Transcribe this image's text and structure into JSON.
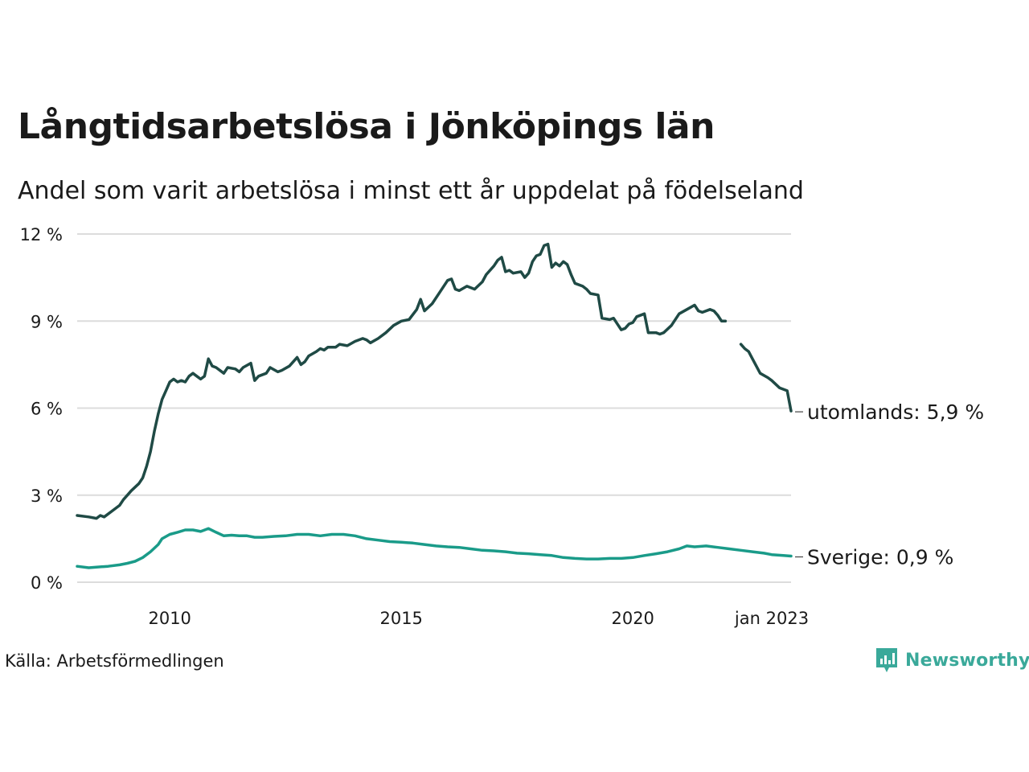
{
  "title": "Långtidsarbetslösa i Jönköpings län",
  "subtitle": "Andel som varit arbetslösa i minst ett år uppdelat på födelseland",
  "source": "Källa: Arbetsförmedlingen",
  "brand": {
    "name": "Newsworthy",
    "icon": "newsworthy-logo-icon",
    "color": "#3aa99a"
  },
  "chart_data": {
    "type": "line",
    "title": "Långtidsarbetslösa i Jönköpings län",
    "subtitle": "Andel som varit arbetslösa i minst ett år uppdelat på födelseland",
    "x_range": [
      "2008-01",
      "2023-01"
    ],
    "ylim": [
      0,
      12
    ],
    "y_ticks": [
      0,
      3,
      6,
      9,
      12
    ],
    "y_tick_labels": [
      "0 %",
      "3 %",
      "6 %",
      "9 %",
      "12 %"
    ],
    "x_ticks": [
      "2010-01",
      "2015-01",
      "2020-01",
      "2023-01"
    ],
    "x_tick_labels": [
      "2010",
      "2015",
      "2020",
      "jan 2023"
    ],
    "grid": "horizontal",
    "legend": "direct labels at line ends",
    "series": [
      {
        "name": "utomlands",
        "end_label": "utomlands: 5,9 %",
        "color": "#1f4a45",
        "points": [
          [
            "2008-01",
            2.3
          ],
          [
            "2008-04",
            2.25
          ],
          [
            "2008-06",
            2.2
          ],
          [
            "2008-07",
            2.3
          ],
          [
            "2008-08",
            2.25
          ],
          [
            "2008-10",
            2.45
          ],
          [
            "2008-12",
            2.65
          ],
          [
            "2009-01",
            2.85
          ],
          [
            "2009-02",
            3.0
          ],
          [
            "2009-03",
            3.15
          ],
          [
            "2009-05",
            3.4
          ],
          [
            "2009-06",
            3.6
          ],
          [
            "2009-07",
            4.0
          ],
          [
            "2009-08",
            4.5
          ],
          [
            "2009-09",
            5.2
          ],
          [
            "2009-10",
            5.8
          ],
          [
            "2009-11",
            6.3
          ],
          [
            "2009-12",
            6.6
          ],
          [
            "2010-01",
            6.9
          ],
          [
            "2010-02",
            7.0
          ],
          [
            "2010-03",
            6.9
          ],
          [
            "2010-04",
            6.95
          ],
          [
            "2010-05",
            6.9
          ],
          [
            "2010-06",
            7.1
          ],
          [
            "2010-07",
            7.2
          ],
          [
            "2010-08",
            7.1
          ],
          [
            "2010-09",
            7.0
          ],
          [
            "2010-10",
            7.1
          ],
          [
            "2010-11",
            7.7
          ],
          [
            "2010-12",
            7.45
          ],
          [
            "2011-01",
            7.4
          ],
          [
            "2011-03",
            7.2
          ],
          [
            "2011-04",
            7.4
          ],
          [
            "2011-06",
            7.35
          ],
          [
            "2011-07",
            7.25
          ],
          [
            "2011-08",
            7.4
          ],
          [
            "2011-10",
            7.55
          ],
          [
            "2011-11",
            6.95
          ],
          [
            "2011-12",
            7.1
          ],
          [
            "2012-02",
            7.2
          ],
          [
            "2012-03",
            7.4
          ],
          [
            "2012-05",
            7.25
          ],
          [
            "2012-06",
            7.3
          ],
          [
            "2012-08",
            7.45
          ],
          [
            "2012-09",
            7.6
          ],
          [
            "2012-10",
            7.75
          ],
          [
            "2012-11",
            7.5
          ],
          [
            "2012-12",
            7.6
          ],
          [
            "2013-01",
            7.8
          ],
          [
            "2013-03",
            7.95
          ],
          [
            "2013-04",
            8.05
          ],
          [
            "2013-05",
            8.0
          ],
          [
            "2013-06",
            8.1
          ],
          [
            "2013-08",
            8.1
          ],
          [
            "2013-09",
            8.2
          ],
          [
            "2013-11",
            8.15
          ],
          [
            "2014-01",
            8.3
          ],
          [
            "2014-03",
            8.4
          ],
          [
            "2014-04",
            8.35
          ],
          [
            "2014-05",
            8.25
          ],
          [
            "2014-07",
            8.4
          ],
          [
            "2014-09",
            8.6
          ],
          [
            "2014-11",
            8.85
          ],
          [
            "2015-01",
            9.0
          ],
          [
            "2015-03",
            9.05
          ],
          [
            "2015-05",
            9.4
          ],
          [
            "2015-06",
            9.75
          ],
          [
            "2015-07",
            9.35
          ],
          [
            "2015-09",
            9.6
          ],
          [
            "2015-11",
            10.0
          ],
          [
            "2016-01",
            10.4
          ],
          [
            "2016-02",
            10.45
          ],
          [
            "2016-03",
            10.1
          ],
          [
            "2016-04",
            10.05
          ],
          [
            "2016-06",
            10.2
          ],
          [
            "2016-08",
            10.1
          ],
          [
            "2016-10",
            10.35
          ],
          [
            "2016-11",
            10.6
          ],
          [
            "2017-01",
            10.9
          ],
          [
            "2017-02",
            11.1
          ],
          [
            "2017-03",
            11.2
          ],
          [
            "2017-04",
            10.7
          ],
          [
            "2017-05",
            10.75
          ],
          [
            "2017-06",
            10.65
          ],
          [
            "2017-08",
            10.7
          ],
          [
            "2017-09",
            10.5
          ],
          [
            "2017-10",
            10.65
          ],
          [
            "2017-11",
            11.05
          ],
          [
            "2017-12",
            11.25
          ],
          [
            "2018-01",
            11.3
          ],
          [
            "2018-02",
            11.6
          ],
          [
            "2018-03",
            11.65
          ],
          [
            "2018-04",
            10.85
          ],
          [
            "2018-05",
            11.0
          ],
          [
            "2018-06",
            10.9
          ],
          [
            "2018-07",
            11.05
          ],
          [
            "2018-08",
            10.95
          ],
          [
            "2018-09",
            10.6
          ],
          [
            "2018-10",
            10.3
          ],
          [
            "2018-12",
            10.2
          ],
          [
            "2019-01",
            10.1
          ],
          [
            "2019-02",
            9.95
          ],
          [
            "2019-04",
            9.9
          ],
          [
            "2019-05",
            9.1
          ],
          [
            "2019-07",
            9.05
          ],
          [
            "2019-08",
            9.1
          ],
          [
            "2019-09",
            8.9
          ],
          [
            "2019-10",
            8.7
          ],
          [
            "2019-11",
            8.75
          ],
          [
            "2019-12",
            8.9
          ],
          [
            "2020-01",
            8.95
          ],
          [
            "2020-02",
            9.15
          ],
          [
            "2020-04",
            9.25
          ],
          [
            "2020-05",
            8.6
          ],
          [
            "2020-07",
            8.6
          ],
          [
            "2020-08",
            8.55
          ],
          [
            "2020-09",
            8.6
          ],
          [
            "2020-11",
            8.85
          ],
          [
            "2021-01",
            9.25
          ],
          [
            "2021-03",
            9.4
          ],
          [
            "2021-05",
            9.55
          ],
          [
            "2021-06",
            9.35
          ],
          [
            "2021-07",
            9.3
          ],
          [
            "2021-09",
            9.4
          ],
          [
            "2021-10",
            9.35
          ],
          [
            "2021-11",
            9.2
          ],
          [
            "2021-12",
            9.0
          ],
          [
            "2022-01",
            9.0
          ],
          null,
          [
            "2022-05",
            8.2
          ],
          [
            "2022-06",
            8.05
          ],
          [
            "2022-07",
            7.95
          ],
          [
            "2022-08",
            7.7
          ],
          [
            "2022-09",
            7.45
          ],
          [
            "2022-10",
            7.2
          ],
          [
            "2022-12",
            7.05
          ],
          [
            "2023-01",
            6.95
          ],
          [
            "2023-03",
            6.7
          ],
          [
            "2023-05",
            6.6
          ],
          [
            "2023-06",
            5.9
          ]
        ]
      },
      {
        "name": "Sverige",
        "end_label": "Sverige: 0,9 %",
        "color": "#1a9b89",
        "points": [
          [
            "2008-01",
            0.55
          ],
          [
            "2008-04",
            0.5
          ],
          [
            "2008-06",
            0.52
          ],
          [
            "2008-09",
            0.55
          ],
          [
            "2008-12",
            0.6
          ],
          [
            "2009-02",
            0.65
          ],
          [
            "2009-04",
            0.72
          ],
          [
            "2009-06",
            0.85
          ],
          [
            "2009-08",
            1.05
          ],
          [
            "2009-10",
            1.3
          ],
          [
            "2009-11",
            1.5
          ],
          [
            "2010-01",
            1.65
          ],
          [
            "2010-03",
            1.72
          ],
          [
            "2010-05",
            1.8
          ],
          [
            "2010-07",
            1.8
          ],
          [
            "2010-09",
            1.75
          ],
          [
            "2010-11",
            1.85
          ],
          [
            "2011-01",
            1.72
          ],
          [
            "2011-03",
            1.6
          ],
          [
            "2011-05",
            1.62
          ],
          [
            "2011-07",
            1.6
          ],
          [
            "2011-09",
            1.6
          ],
          [
            "2011-11",
            1.55
          ],
          [
            "2012-01",
            1.55
          ],
          [
            "2012-04",
            1.58
          ],
          [
            "2012-07",
            1.6
          ],
          [
            "2012-10",
            1.65
          ],
          [
            "2013-01",
            1.65
          ],
          [
            "2013-04",
            1.6
          ],
          [
            "2013-07",
            1.65
          ],
          [
            "2013-10",
            1.65
          ],
          [
            "2014-01",
            1.6
          ],
          [
            "2014-04",
            1.5
          ],
          [
            "2014-07",
            1.45
          ],
          [
            "2014-10",
            1.4
          ],
          [
            "2015-01",
            1.38
          ],
          [
            "2015-04",
            1.35
          ],
          [
            "2015-07",
            1.3
          ],
          [
            "2015-10",
            1.25
          ],
          [
            "2016-01",
            1.22
          ],
          [
            "2016-04",
            1.2
          ],
          [
            "2016-07",
            1.15
          ],
          [
            "2016-10",
            1.1
          ],
          [
            "2017-01",
            1.08
          ],
          [
            "2017-04",
            1.05
          ],
          [
            "2017-07",
            1.0
          ],
          [
            "2017-10",
            0.98
          ],
          [
            "2018-01",
            0.95
          ],
          [
            "2018-04",
            0.92
          ],
          [
            "2018-07",
            0.85
          ],
          [
            "2018-10",
            0.82
          ],
          [
            "2019-01",
            0.8
          ],
          [
            "2019-04",
            0.8
          ],
          [
            "2019-07",
            0.82
          ],
          [
            "2019-10",
            0.82
          ],
          [
            "2020-01",
            0.85
          ],
          [
            "2020-04",
            0.92
          ],
          [
            "2020-07",
            0.98
          ],
          [
            "2020-10",
            1.05
          ],
          [
            "2021-01",
            1.15
          ],
          [
            "2021-03",
            1.25
          ],
          [
            "2021-05",
            1.22
          ],
          [
            "2021-08",
            1.25
          ],
          [
            "2021-11",
            1.2
          ],
          [
            "2022-02",
            1.15
          ],
          [
            "2022-05",
            1.1
          ],
          [
            "2022-08",
            1.05
          ],
          [
            "2022-11",
            1.0
          ],
          [
            "2023-01",
            0.95
          ],
          [
            "2023-04",
            0.92
          ],
          [
            "2023-06",
            0.9
          ]
        ]
      }
    ]
  }
}
